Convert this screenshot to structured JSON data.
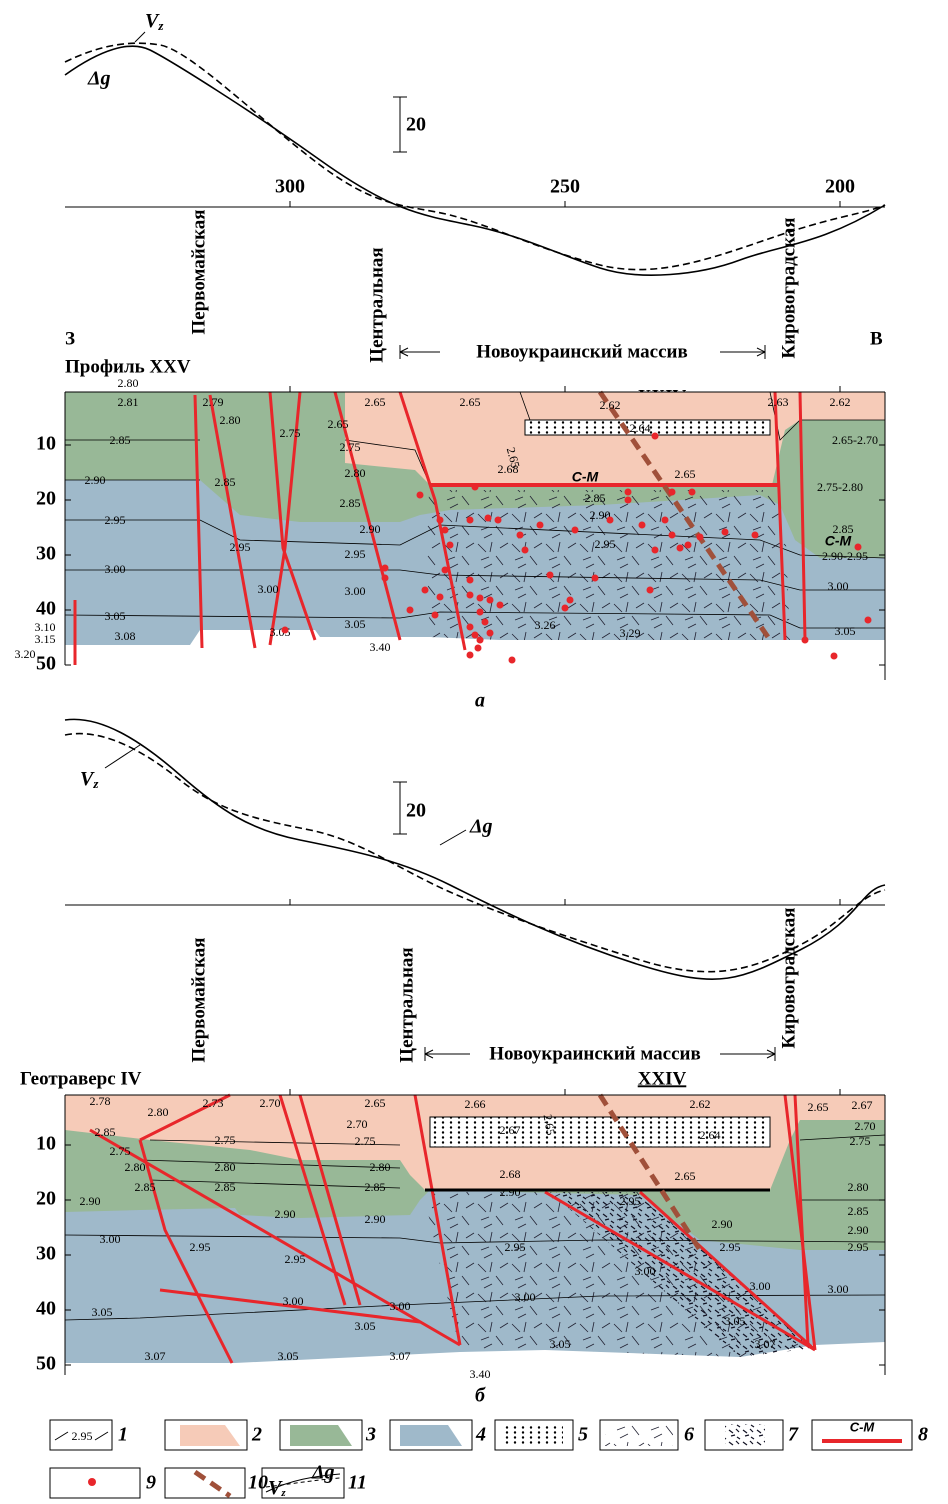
{
  "section_a": {
    "label": "а",
    "vz_symbol": "V",
    "vz_subscript": "z",
    "dg_symbol": "Δg",
    "scale_label": "20",
    "west": "З",
    "east": "В",
    "title": "Профиль XXV",
    "massif": "Новоукраинский массив",
    "profile_number": "XXIV",
    "wells": [
      "Первомайская",
      "Центральная",
      "Кировоградская"
    ],
    "profile_ticks": [
      300,
      250,
      200
    ],
    "depth_ticks": [
      10,
      20,
      30,
      40,
      50
    ],
    "cm_labels": [
      "С-М",
      "С-М"
    ],
    "rotated_label": "2.65",
    "density_labels": [
      "2.80",
      "2.81",
      "2.79",
      "2.65",
      "2.65",
      "2.62",
      "2.63",
      "2.62",
      "2.80",
      "2.75",
      "2.65",
      "2.85",
      "2.75",
      "2.64",
      "2.65-2.70",
      "2.80",
      "2.68",
      "2.65",
      "2.90",
      "2.85",
      "2.85",
      "2.85",
      "2.75-2.80",
      "2.95",
      "2.90",
      "2.90",
      "2.85",
      "2.95",
      "2.95",
      "2.95",
      "2.90-2.95",
      "3.00",
      "3.00",
      "3.00",
      "3.00",
      "3.05",
      "3.10",
      "3.15",
      "3.20",
      "3.08",
      "3.05",
      "3.05",
      "3.26",
      "3.29",
      "3.05",
      "3.40"
    ]
  },
  "section_b": {
    "label": "б",
    "vz_symbol": "V",
    "vz_subscript": "z",
    "dg_symbol": "Δg",
    "scale_label": "20",
    "title": "Геотраверс IV",
    "massif": "Новоукраинский массив",
    "profile_number": "XXIV",
    "wells": [
      "Первомайская",
      "Центральная",
      "Кировоградская"
    ],
    "depth_ticks": [
      10,
      20,
      30,
      40,
      50
    ],
    "rotated_label": "2.65",
    "density_labels": [
      "2.78",
      "2.80",
      "2.73",
      "2.70",
      "2.65",
      "2.66",
      "2.62",
      "2.65",
      "2.67",
      "2.70",
      "2.67",
      "2.64",
      "2.70",
      "2.85",
      "2.75",
      "2.75",
      "2.75",
      "2.75",
      "2.80",
      "2.80",
      "2.80",
      "2.85",
      "2.85",
      "2.85",
      "2.68",
      "2.65",
      "2.80",
      "2.90",
      "2.90",
      "2.90",
      "2.90",
      "2.85",
      "2.95",
      "2.90",
      "2.90",
      "3.00",
      "2.95",
      "2.95",
      "2.95",
      "2.95",
      "2.95",
      "3.00",
      "3.00",
      "3.00",
      "3.00",
      "3.00",
      "3.00",
      "3.05",
      "3.05",
      "3.05",
      "3.07",
      "3.05",
      "3.07",
      "3.05",
      "3.07",
      "3.40"
    ]
  },
  "legend": {
    "numbers": [
      "1",
      "2",
      "3",
      "4",
      "5",
      "6",
      "7",
      "8",
      "9",
      "10",
      "11"
    ],
    "sample_isoline": "2.95",
    "cm": "С-М",
    "vz_symbol": "V",
    "vz_subscript": "z",
    "dg_symbol": "Δg"
  }
}
